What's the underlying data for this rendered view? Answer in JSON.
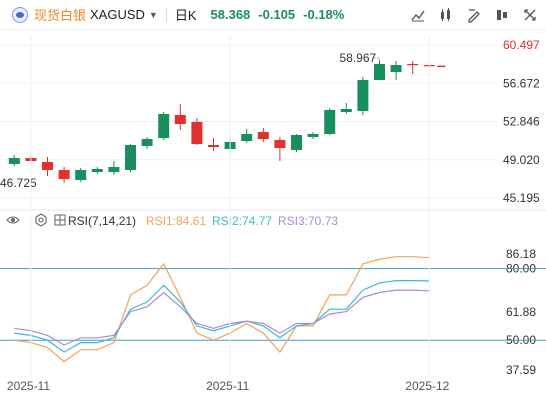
{
  "toolbar": {
    "instrument_name": "现货白银",
    "symbol": "XAGUSD",
    "timeframe": "日K",
    "last_price": "58.368",
    "change": "-0.105",
    "change_pct": "-0.18%",
    "tools": [
      "crosshair-icon",
      "indicator-icon",
      "draw-icon",
      "layout-icon",
      "fullscreen-icon"
    ]
  },
  "colors": {
    "up": "#1a8f5e",
    "down": "#e0312f",
    "rsi1": "#f5a155",
    "rsi2": "#3db8d0",
    "rsi3": "#a98bd6",
    "ref_line": "#3d9ecf"
  },
  "chart_data": [
    {
      "type": "candlestick",
      "title": "",
      "y_ticks": [
        "60.497",
        "56.672",
        "52.846",
        "49.020",
        "45.195"
      ],
      "ylim": [
        44.2,
        61.4
      ],
      "high_label": "58.967",
      "low_label": "46.725",
      "x_ticks": [
        "2025-11",
        "2025-11",
        "2025-12"
      ],
      "candles": [
        {
          "o": 48.6,
          "h": 49.5,
          "l": 48.4,
          "c": 49.2
        },
        {
          "o": 49.2,
          "h": 49.6,
          "l": 48.5,
          "c": 48.9
        },
        {
          "o": 48.8,
          "h": 49.3,
          "l": 47.4,
          "c": 48.0
        },
        {
          "o": 48.0,
          "h": 48.3,
          "l": 46.7,
          "c": 47.1
        },
        {
          "o": 47.0,
          "h": 48.2,
          "l": 46.8,
          "c": 48.0
        },
        {
          "o": 47.8,
          "h": 48.3,
          "l": 47.6,
          "c": 48.1
        },
        {
          "o": 47.8,
          "h": 48.9,
          "l": 47.5,
          "c": 48.3
        },
        {
          "o": 48.0,
          "h": 50.6,
          "l": 47.8,
          "c": 50.5
        },
        {
          "o": 50.4,
          "h": 51.3,
          "l": 50.1,
          "c": 51.1
        },
        {
          "o": 51.2,
          "h": 53.8,
          "l": 51.0,
          "c": 53.6
        },
        {
          "o": 53.5,
          "h": 54.6,
          "l": 52.0,
          "c": 52.6
        },
        {
          "o": 52.8,
          "h": 53.2,
          "l": 50.5,
          "c": 50.6
        },
        {
          "o": 50.5,
          "h": 51.2,
          "l": 49.9,
          "c": 50.3
        },
        {
          "o": 50.1,
          "h": 51.3,
          "l": 49.6,
          "c": 50.8
        },
        {
          "o": 50.9,
          "h": 52.1,
          "l": 50.7,
          "c": 51.6
        },
        {
          "o": 51.8,
          "h": 52.2,
          "l": 50.8,
          "c": 51.1
        },
        {
          "o": 51.0,
          "h": 51.3,
          "l": 48.9,
          "c": 50.2
        },
        {
          "o": 50.0,
          "h": 51.6,
          "l": 49.8,
          "c": 51.5
        },
        {
          "o": 51.3,
          "h": 51.8,
          "l": 51.1,
          "c": 51.6
        },
        {
          "o": 51.6,
          "h": 54.2,
          "l": 51.5,
          "c": 54.0
        },
        {
          "o": 53.8,
          "h": 54.7,
          "l": 53.6,
          "c": 54.1
        },
        {
          "o": 53.9,
          "h": 57.3,
          "l": 53.5,
          "c": 57.0
        },
        {
          "o": 57.0,
          "h": 59.0,
          "l": 57.0,
          "c": 58.6
        },
        {
          "o": 57.8,
          "h": 58.9,
          "l": 57.0,
          "c": 58.5
        },
        {
          "o": 58.6,
          "h": 58.9,
          "l": 57.6,
          "c": 58.5
        },
        {
          "o": 58.5,
          "h": 58.7,
          "l": 58.3,
          "c": 58.4
        }
      ]
    },
    {
      "type": "line",
      "title": "RSI(7,14,21)",
      "y_ticks": [
        "86.18",
        "80.00",
        "61.88",
        "50.00",
        "37.59"
      ],
      "ylim": [
        35,
        92
      ],
      "ref_lines": [
        80,
        50
      ],
      "series": [
        {
          "name": "RSI1:84.61",
          "values": [
            50,
            49,
            47,
            41,
            46,
            46,
            49,
            69,
            73,
            82,
            68,
            53,
            50,
            53,
            57,
            53,
            45,
            56,
            56,
            69,
            69,
            82,
            84,
            85,
            85,
            84.6
          ]
        },
        {
          "name": "RSI2:74.77",
          "values": [
            53,
            52,
            50,
            45,
            49,
            49,
            51,
            63,
            66,
            73,
            66,
            56,
            54,
            56,
            58,
            56,
            51,
            56,
            57,
            63,
            63,
            71,
            74,
            75,
            75,
            74.8
          ]
        },
        {
          "name": "RSI3:70.73",
          "values": [
            55,
            54,
            52,
            48,
            51,
            51,
            52,
            62,
            64,
            70,
            64,
            57,
            55,
            57,
            58,
            57,
            53,
            57,
            57,
            61,
            62,
            68,
            70,
            71,
            71,
            70.7
          ]
        }
      ]
    }
  ]
}
